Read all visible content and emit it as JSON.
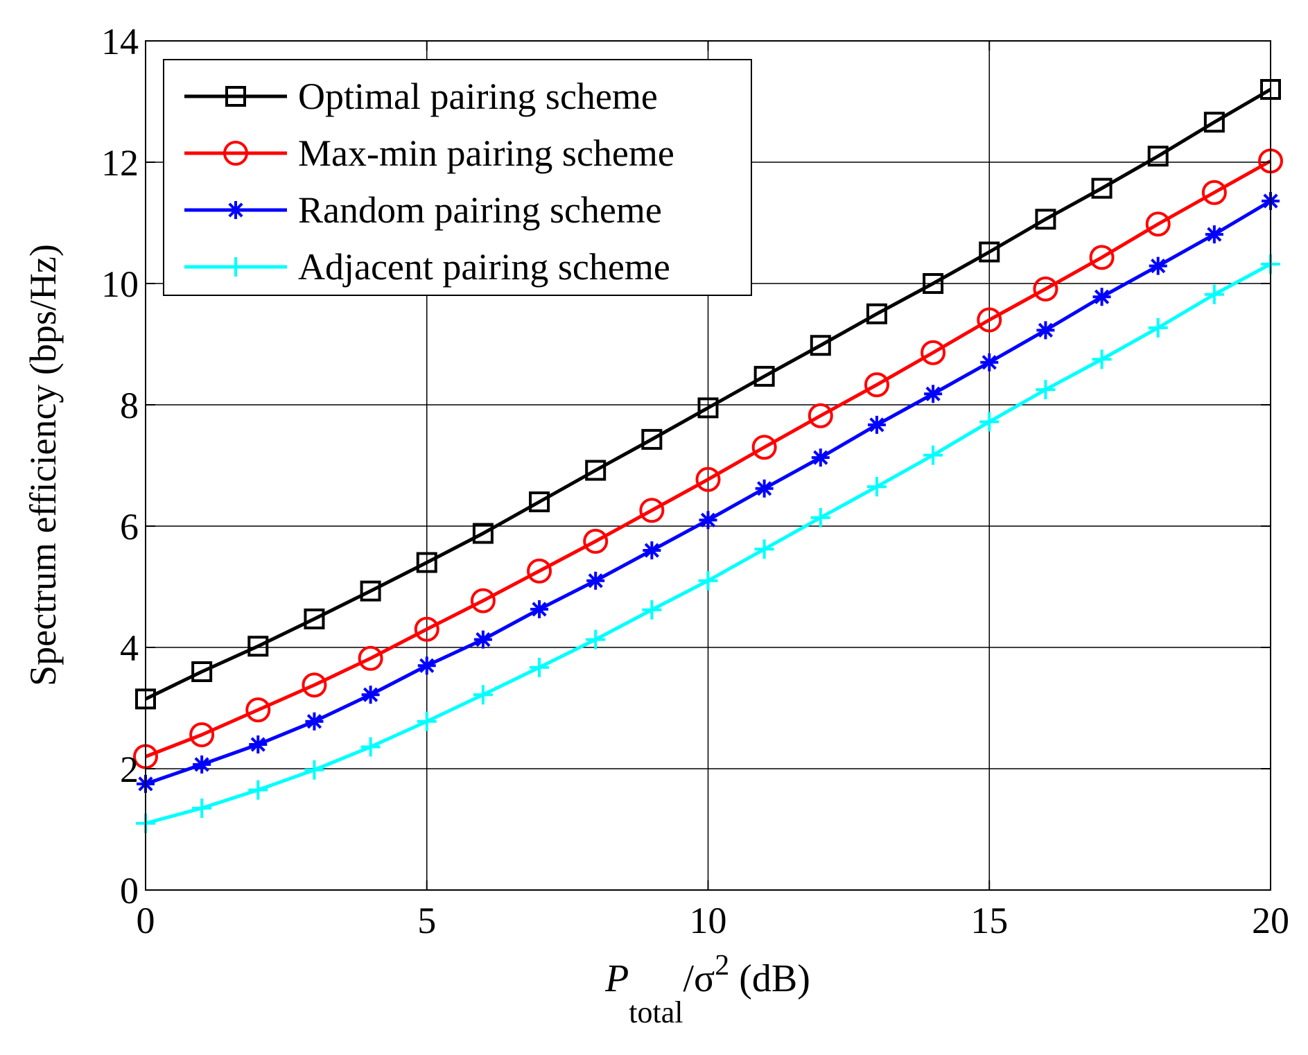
{
  "chart_data": {
    "type": "line",
    "title": "",
    "xlabel": {
      "base": "P",
      "subscript": "total",
      "middle": "/σ",
      "superscript": "2",
      "suffix": " (dB)"
    },
    "ylabel": "Spectrum efficiency (bps/Hz)",
    "xlim": [
      0,
      20
    ],
    "ylim": [
      0,
      14
    ],
    "xticks": [
      0,
      5,
      10,
      15,
      20
    ],
    "yticks": [
      0,
      2,
      4,
      6,
      8,
      10,
      12,
      14
    ],
    "grid": true,
    "legend_position": "top-left",
    "x": [
      0,
      1,
      2,
      3,
      4,
      5,
      6,
      7,
      8,
      9,
      10,
      11,
      12,
      13,
      14,
      15,
      16,
      17,
      18,
      19,
      20
    ],
    "series": [
      {
        "name": "Optimal pairing scheme",
        "color": "#000000",
        "marker": "square",
        "values": [
          3.15,
          3.6,
          4.02,
          4.47,
          4.93,
          5.4,
          5.88,
          6.4,
          6.92,
          7.43,
          7.95,
          8.47,
          8.98,
          9.5,
          10.0,
          10.52,
          11.06,
          11.57,
          12.1,
          12.66,
          13.2
        ]
      },
      {
        "name": "Max-min pairing scheme",
        "color": "#ff0000",
        "marker": "circle",
        "values": [
          2.2,
          2.56,
          2.97,
          3.38,
          3.82,
          4.3,
          4.77,
          5.26,
          5.75,
          6.26,
          6.77,
          7.3,
          7.82,
          8.33,
          8.86,
          9.4,
          9.91,
          10.43,
          10.98,
          11.5,
          12.02
        ]
      },
      {
        "name": "Random pairing scheme",
        "color": "#0000ff",
        "marker": "asterisk",
        "values": [
          1.75,
          2.07,
          2.4,
          2.78,
          3.22,
          3.7,
          4.13,
          4.63,
          5.1,
          5.6,
          6.1,
          6.62,
          7.13,
          7.67,
          8.18,
          8.7,
          9.23,
          9.78,
          10.29,
          10.81,
          11.36
        ]
      },
      {
        "name": "Adjacent pairing scheme",
        "color": "#00ffff",
        "marker": "plus",
        "values": [
          1.1,
          1.35,
          1.65,
          1.98,
          2.36,
          2.78,
          3.22,
          3.67,
          4.13,
          4.62,
          5.1,
          5.62,
          6.14,
          6.65,
          7.17,
          7.72,
          8.25,
          8.75,
          9.27,
          9.82,
          10.32
        ]
      }
    ]
  }
}
